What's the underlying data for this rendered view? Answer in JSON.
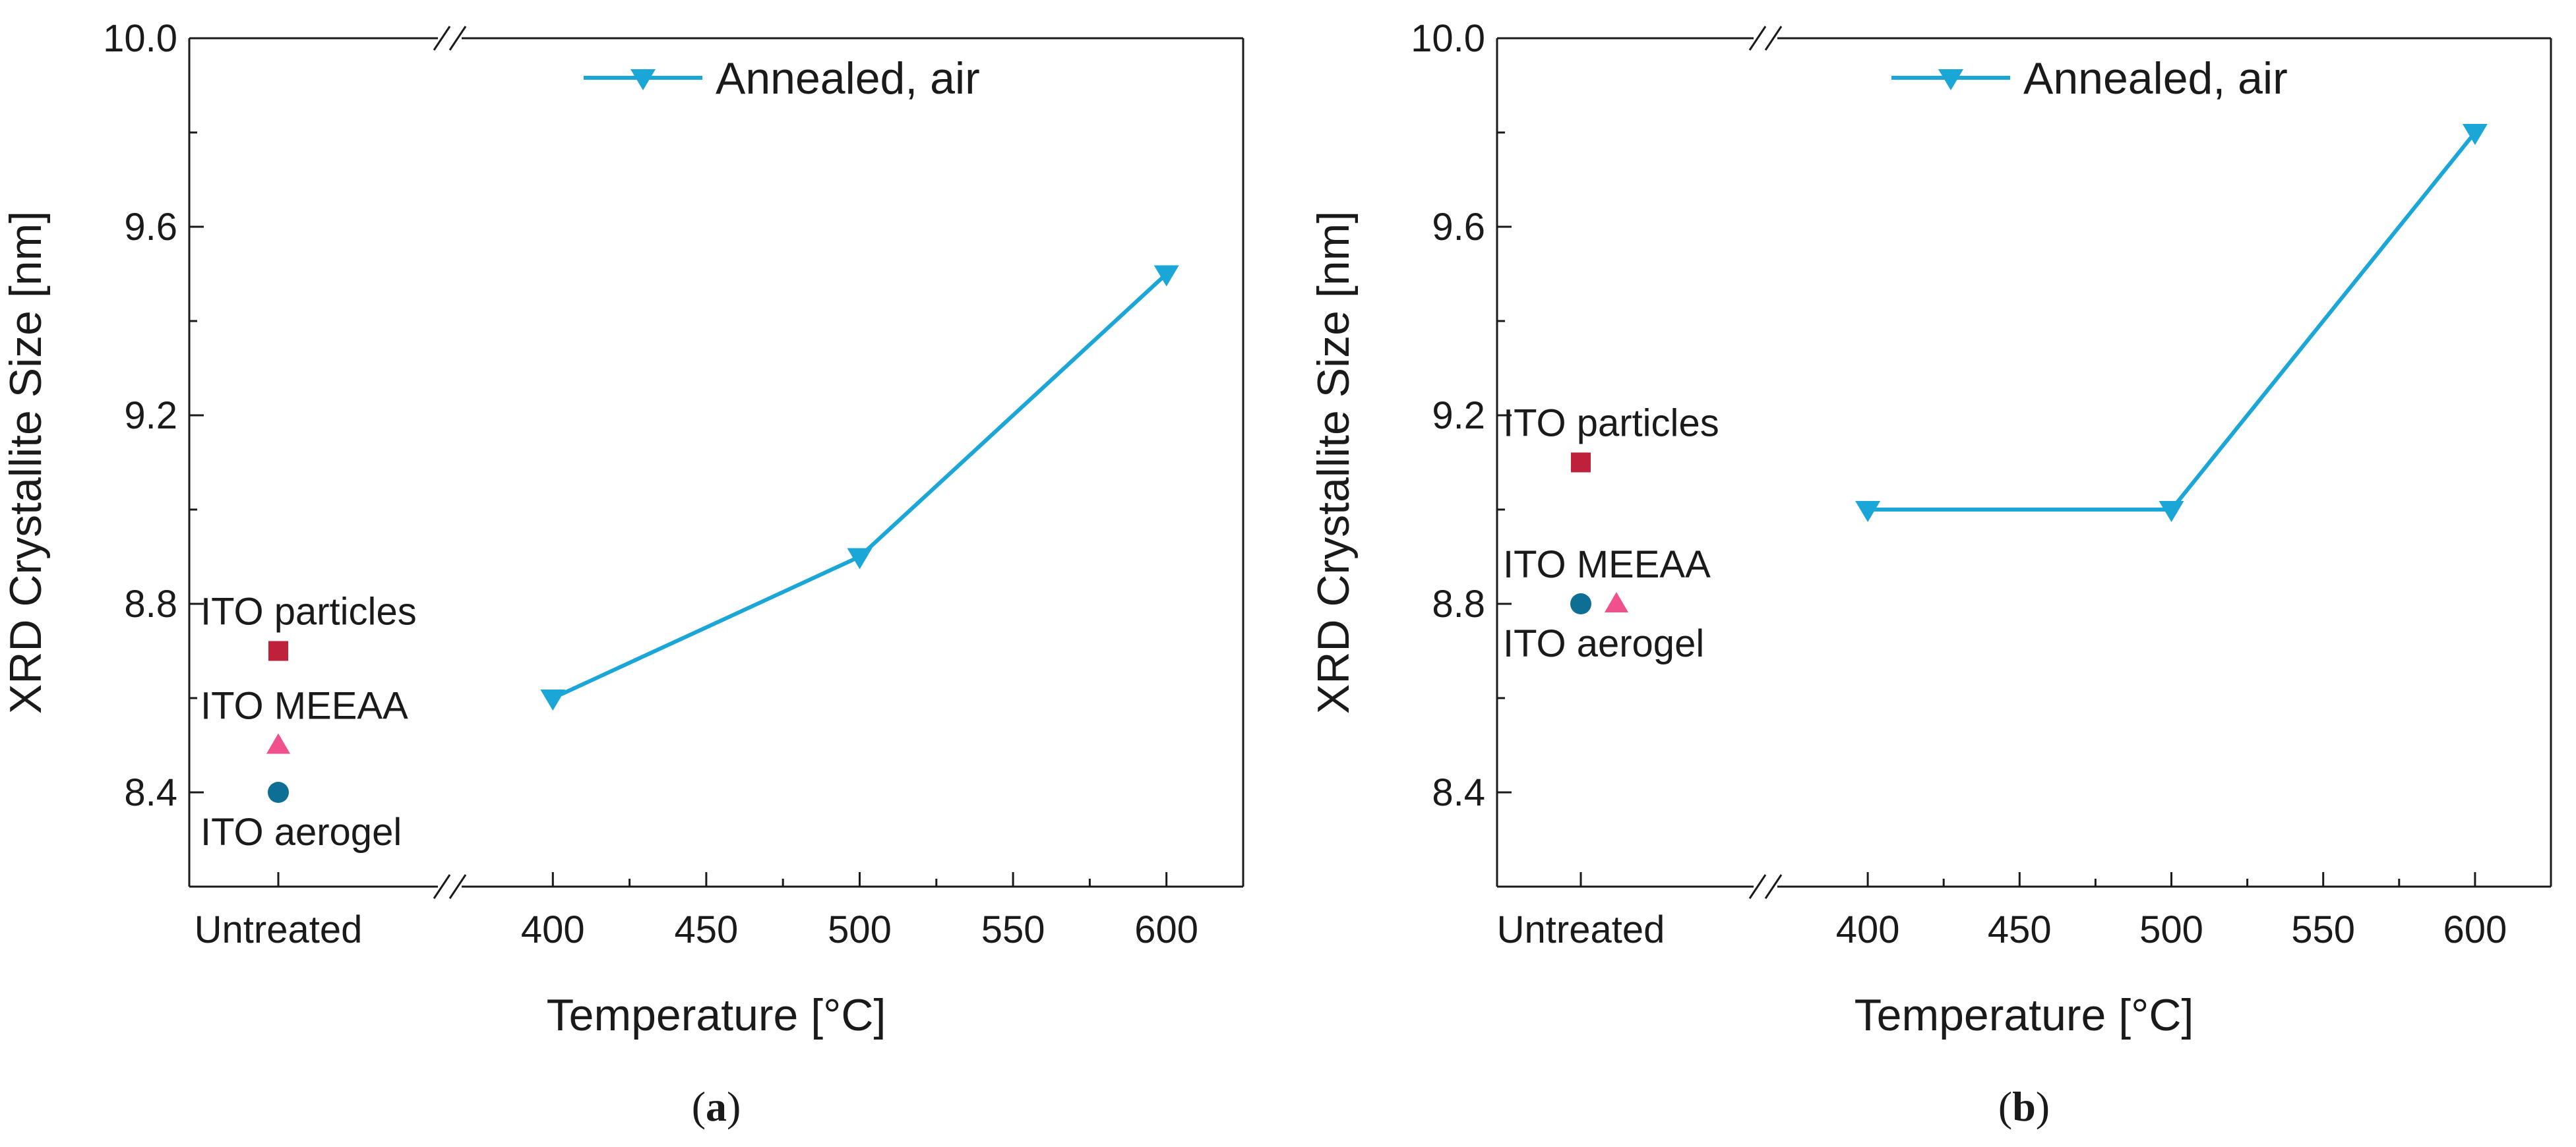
{
  "chart_data": [
    {
      "type": "line",
      "panel_label": "a",
      "xlabel": "Temperature [°C]",
      "ylabel": "XRD Crystallite Size [nm]",
      "ylim": [
        8.2,
        10.0
      ],
      "yticks": [
        8.4,
        8.8,
        9.2,
        9.6,
        10.0
      ],
      "ytick_labels": [
        "8.4",
        "8.8",
        "9.2",
        "9.6",
        "10.0"
      ],
      "x_break": true,
      "x_categories": [
        "Untreated"
      ],
      "xlim": [
        375,
        625
      ],
      "xticks": [
        400,
        450,
        500,
        550,
        600
      ],
      "xtick_labels": [
        "400",
        "450",
        "500",
        "550",
        "600"
      ],
      "legend": {
        "entries": [
          "Annealed, air"
        ],
        "position": "top-right"
      },
      "series": [
        {
          "name": "Annealed, air",
          "marker": "triangle-down",
          "color": "#1aa7d8",
          "x": [
            400,
            500,
            600
          ],
          "y": [
            8.6,
            8.9,
            9.5
          ]
        }
      ],
      "untreated_points": [
        {
          "label": "ITO particles",
          "marker": "square",
          "color": "#c0213a",
          "y": 8.7,
          "label_position": "above-left"
        },
        {
          "label": "ITO MEEAA",
          "marker": "triangle-up",
          "color": "#f0508c",
          "y": 8.5,
          "label_position": "above-left"
        },
        {
          "label": "ITO aerogel",
          "marker": "circle",
          "color": "#0e6f94",
          "y": 8.4,
          "label_position": "below-left"
        }
      ]
    },
    {
      "type": "line",
      "panel_label": "b",
      "xlabel": "Temperature [°C]",
      "ylabel": "XRD Crystallite Size [nm]",
      "ylim": [
        8.2,
        10.0
      ],
      "yticks": [
        8.4,
        8.8,
        9.2,
        9.6,
        10.0
      ],
      "ytick_labels": [
        "8.4",
        "8.8",
        "9.2",
        "9.6",
        "10.0"
      ],
      "x_break": true,
      "x_categories": [
        "Untreated"
      ],
      "xlim": [
        375,
        625
      ],
      "xticks": [
        400,
        450,
        500,
        550,
        600
      ],
      "xtick_labels": [
        "400",
        "450",
        "500",
        "550",
        "600"
      ],
      "legend": {
        "entries": [
          "Annealed, air"
        ],
        "position": "top-right"
      },
      "series": [
        {
          "name": "Annealed, air",
          "marker": "triangle-down",
          "color": "#1aa7d8",
          "x": [
            400,
            500,
            600
          ],
          "y": [
            9.0,
            9.0,
            9.8
          ]
        }
      ],
      "untreated_points": [
        {
          "label": "ITO particles",
          "marker": "square",
          "color": "#c0213a",
          "y": 9.1,
          "label_position": "above-left"
        },
        {
          "label": "ITO MEEAA",
          "marker": "triangle-up",
          "color": "#f0508c",
          "y": 8.8,
          "offset": "right",
          "label_position": "above-left"
        },
        {
          "label": "ITO aerogel",
          "marker": "circle",
          "color": "#0e6f94",
          "y": 8.8,
          "label_position": "below-left"
        }
      ]
    }
  ]
}
